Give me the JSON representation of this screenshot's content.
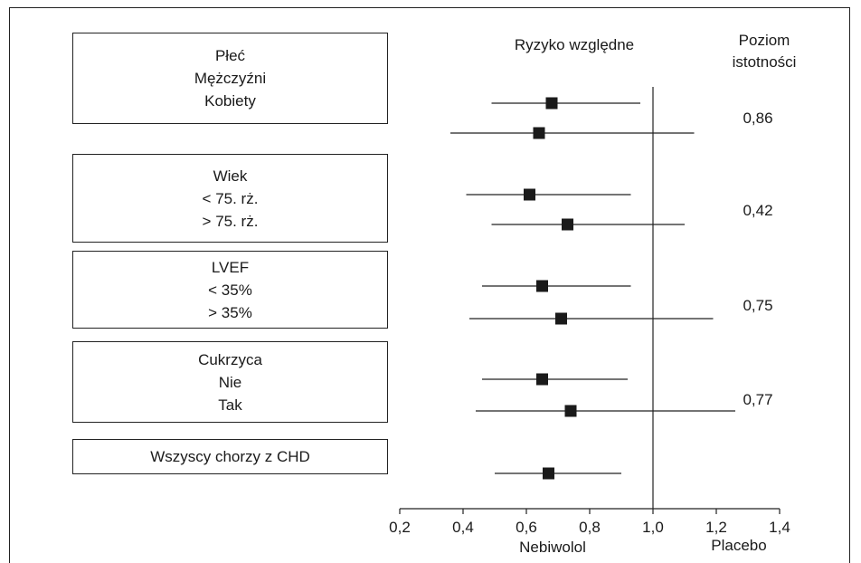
{
  "header": {
    "relative_risk": "Ryzyko względne",
    "significance_line1": "Poziom",
    "significance_line2": "istotności"
  },
  "groups": [
    {
      "lines": [
        "Płeć",
        "Mężczyźni",
        "Kobiety"
      ],
      "p": "0,86"
    },
    {
      "lines": [
        "Wiek",
        "< 75. rż.",
        "> 75. rż."
      ],
      "p": "0,42"
    },
    {
      "lines": [
        "LVEF",
        "< 35%",
        "> 35%"
      ],
      "p": "0,75"
    },
    {
      "lines": [
        "Cukrzyca",
        "Nie",
        "Tak"
      ],
      "p": "0,77"
    },
    {
      "lines": [
        "Wszyscy chorzy z CHD"
      ],
      "p": ""
    }
  ],
  "footer": {
    "left_label": "Nebiwolol",
    "right_label": "Placebo"
  },
  "chart_data": {
    "type": "forest",
    "title": "",
    "xlabel": "",
    "xlim": [
      0.2,
      1.4
    ],
    "xticks": [
      "0,2",
      "0,4",
      "0,6",
      "0,8",
      "1,0",
      "1,2",
      "1,4"
    ],
    "reference_line": 1.0,
    "rows": [
      {
        "label": "Mężczyźni",
        "estimate": 0.68,
        "ci": [
          0.49,
          0.96
        ]
      },
      {
        "label": "Kobiety",
        "estimate": 0.64,
        "ci": [
          0.36,
          1.13
        ]
      },
      {
        "label": "< 75. rż.",
        "estimate": 0.61,
        "ci": [
          0.41,
          0.93
        ]
      },
      {
        "label": "> 75. rż.",
        "estimate": 0.73,
        "ci": [
          0.49,
          1.1
        ]
      },
      {
        "label": "< 35%",
        "estimate": 0.65,
        "ci": [
          0.46,
          0.93
        ]
      },
      {
        "label": "> 35%",
        "estimate": 0.71,
        "ci": [
          0.42,
          1.19
        ]
      },
      {
        "label": "Nie",
        "estimate": 0.65,
        "ci": [
          0.46,
          0.92
        ]
      },
      {
        "label": "Tak",
        "estimate": 0.74,
        "ci": [
          0.44,
          1.26
        ]
      },
      {
        "label": "Wszyscy chorzy z CHD",
        "estimate": 0.67,
        "ci": [
          0.5,
          0.9
        ]
      }
    ]
  }
}
